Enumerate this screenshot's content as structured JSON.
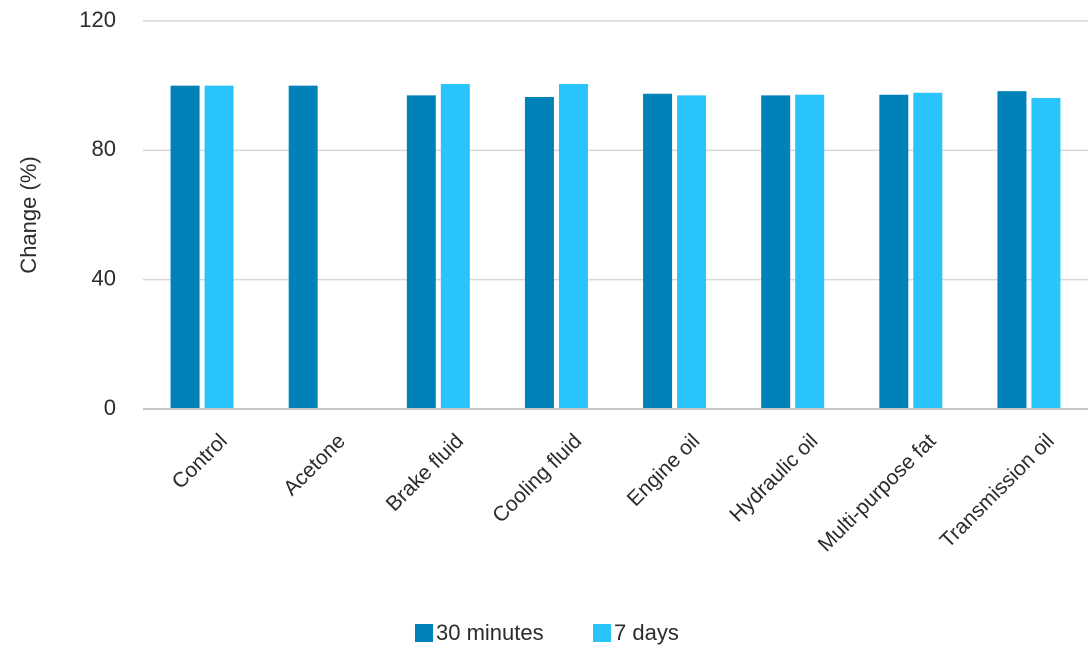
{
  "chart_data": {
    "type": "bar",
    "title": "",
    "xlabel": "",
    "ylabel": "Change (%)",
    "ylim": [
      0,
      120
    ],
    "yticks": [
      0,
      40,
      80,
      120
    ],
    "grid": true,
    "legend_position": "bottom",
    "categories": [
      "Control",
      "Acetone",
      "Brake fluid",
      "Cooling fluid",
      "Engine oil",
      "Hydraulic oil",
      "Multi-purpose fat",
      "Transmission oil"
    ],
    "series": [
      {
        "name": "30 minutes",
        "color": "#0082b8",
        "values": [
          100,
          100,
          97,
          96.5,
          97.5,
          97,
          97.2,
          98.3
        ]
      },
      {
        "name": "7 days",
        "color": "#29c4fb",
        "values": [
          100,
          null,
          100.5,
          100.5,
          97,
          97.2,
          97.8,
          96.2
        ]
      }
    ]
  }
}
